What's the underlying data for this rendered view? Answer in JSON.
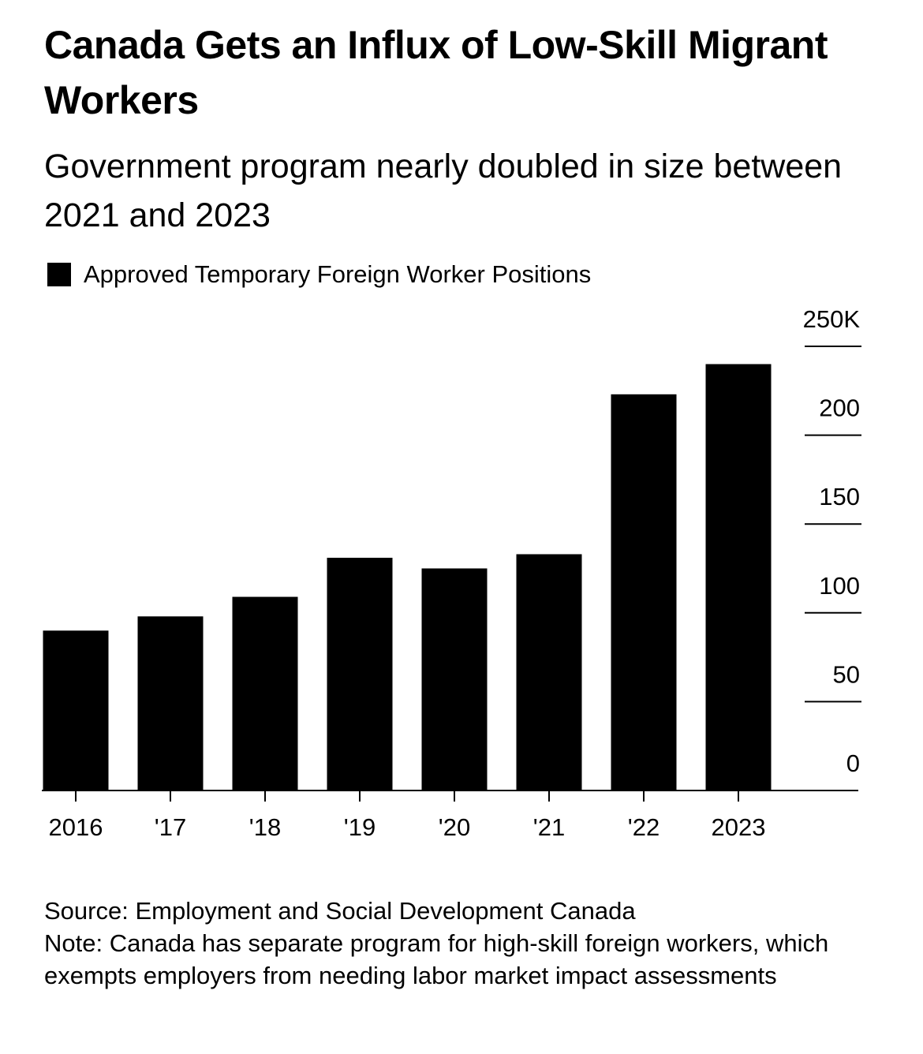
{
  "chart_data": {
    "type": "bar",
    "title": "Canada Gets an Influx of Low-Skill Migrant Workers",
    "subtitle": "Government program nearly doubled in size between 2021 and 2023",
    "categories": [
      "2016",
      "'17",
      "'18",
      "'19",
      "'20",
      "'21",
      "'22",
      "2023"
    ],
    "series": [
      {
        "name": "Approved Temporary Foreign Worker Positions",
        "color": "#000000",
        "values": [
          90,
          98,
          109,
          131,
          125,
          133,
          223,
          240
        ]
      }
    ],
    "ylim": [
      0,
      250
    ],
    "yticks": [
      0,
      50,
      100,
      150,
      200,
      {
        "value": 250,
        "label": "250K"
      }
    ],
    "source": "Source: Employment and Social Development Canada",
    "note": "Note: Canada has separate program for high-skill foreign workers, which exempts employers from needing labor market impact assessments"
  }
}
